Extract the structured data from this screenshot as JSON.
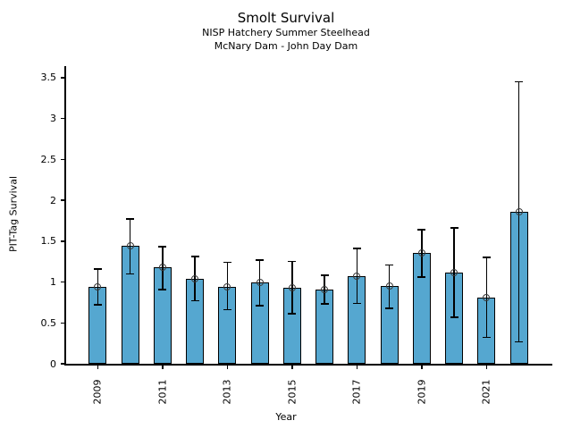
{
  "chart_data": {
    "type": "bar",
    "title": "Smolt Survival",
    "subtitle1": "NISP Hatchery Summer Steelhead",
    "subtitle2": "McNary Dam - John Day Dam",
    "xlabel": "Year",
    "ylabel": "PIT-Tag Survival",
    "categories": [
      "2009",
      "2010",
      "2011",
      "2012",
      "2013",
      "2014",
      "2015",
      "2016",
      "2017",
      "2018",
      "2019",
      "2020",
      "2021",
      "2022"
    ],
    "values": [
      0.94,
      1.44,
      1.18,
      1.04,
      0.94,
      0.99,
      0.93,
      0.91,
      1.07,
      0.95,
      1.36,
      1.12,
      0.81,
      1.86
    ],
    "error_low": [
      0.72,
      1.1,
      0.91,
      0.77,
      0.66,
      0.71,
      0.61,
      0.73,
      0.74,
      0.68,
      1.06,
      0.57,
      0.32,
      0.27
    ],
    "error_high": [
      1.16,
      1.77,
      1.43,
      1.31,
      1.24,
      1.27,
      1.25,
      1.08,
      1.41,
      1.21,
      1.64,
      1.66,
      1.3,
      3.45
    ],
    "xtick_labels": [
      "2009",
      "2011",
      "2013",
      "2015",
      "2017",
      "2019",
      "2021"
    ],
    "ytick_labels": [
      "0",
      "0.5",
      "1",
      "1.5",
      "2",
      "2.5",
      "3",
      "3.5"
    ],
    "yticks": [
      0,
      0.5,
      1,
      1.5,
      2,
      2.5,
      3,
      3.5
    ],
    "ylim": [
      0,
      3.64
    ],
    "grid": false,
    "legend": "none",
    "bar_color": "#55A7D0",
    "bar_edge_color": "#000000",
    "error_color": "#000000",
    "marker": "open-circle"
  }
}
